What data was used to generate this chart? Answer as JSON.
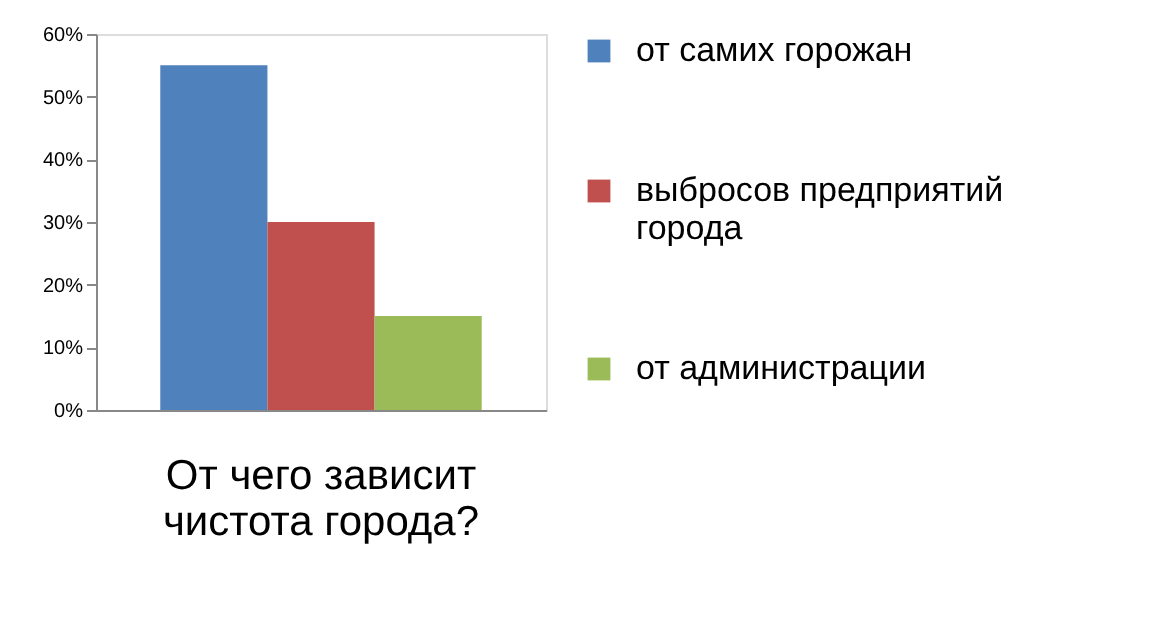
{
  "chart_data": {
    "type": "bar",
    "categories": [
      "От чего зависит чистота города?"
    ],
    "series": [
      {
        "name": "от самих горожан",
        "color": "#4f81bd",
        "values": [
          55
        ]
      },
      {
        "name": "выбросов предприятий города",
        "color": "#c0504d",
        "values": [
          30
        ]
      },
      {
        "name": "от администрации",
        "color": "#9bbb59",
        "values": [
          15
        ]
      }
    ],
    "ylim": [
      0,
      60
    ],
    "yticks": [
      {
        "value": 0,
        "label": "0%"
      },
      {
        "value": 10,
        "label": "10%"
      },
      {
        "value": 20,
        "label": "20%"
      },
      {
        "value": 30,
        "label": "30%"
      },
      {
        "value": 40,
        "label": "40%"
      },
      {
        "value": 50,
        "label": "50%"
      },
      {
        "value": 60,
        "label": "60%"
      }
    ],
    "grid": false,
    "legend": "right"
  }
}
